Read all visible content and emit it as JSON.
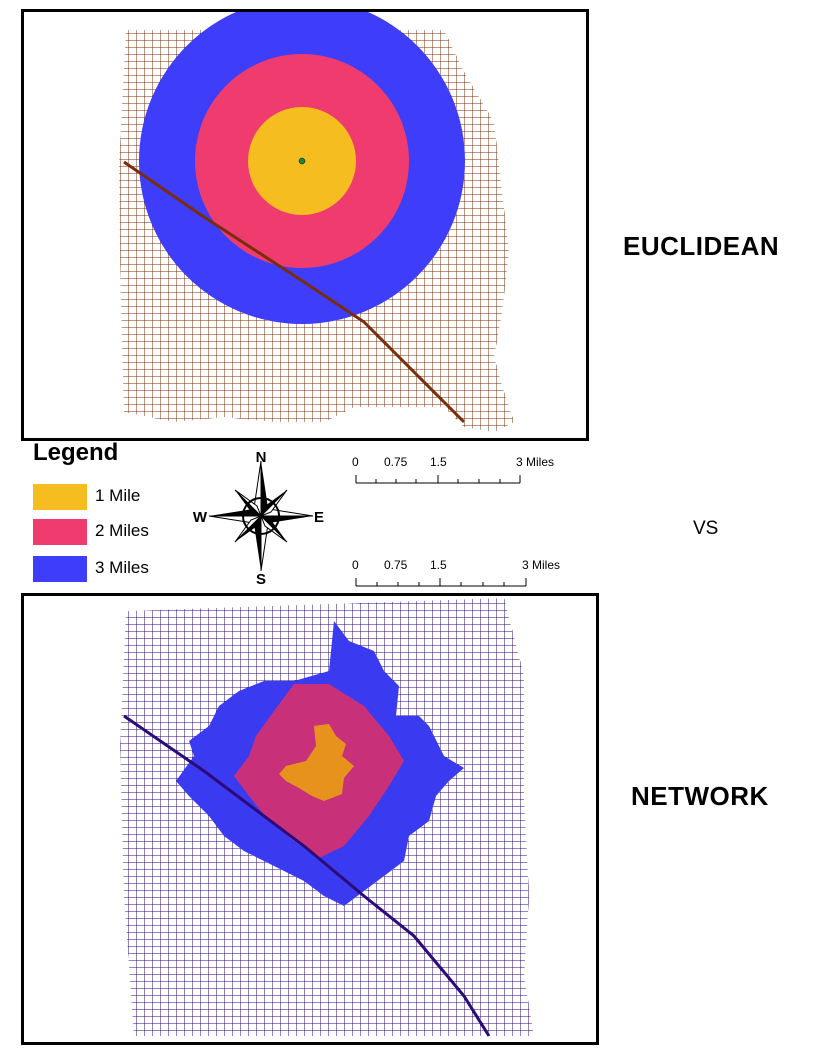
{
  "labels": {
    "top": "EUCLIDEAN",
    "bottom": "NETWORK",
    "vs": "VS"
  },
  "legend": {
    "title": "Legend",
    "items": [
      {
        "label": "1 Mile",
        "color": "#f5bd1f"
      },
      {
        "label": "2 Miles",
        "color": "#ef3b6e"
      },
      {
        "label": "3 Miles",
        "color": "#3d3dfa"
      }
    ]
  },
  "network_colors": {
    "1": "#e8921e",
    "2": "#c8317a",
    "3": "#3a3af0"
  },
  "street_colors": {
    "top": "#7b2c0a",
    "bottom": "#2b0a7a"
  },
  "compass": {
    "n": "N",
    "s": "S",
    "e": "E",
    "w": "W"
  },
  "scale_top": {
    "ticks": [
      "0",
      "0.75",
      "1.5",
      "3 Miles"
    ]
  },
  "scale_bottom": {
    "ticks": [
      "0",
      "0.75",
      "1.5",
      "3 Miles"
    ]
  }
}
